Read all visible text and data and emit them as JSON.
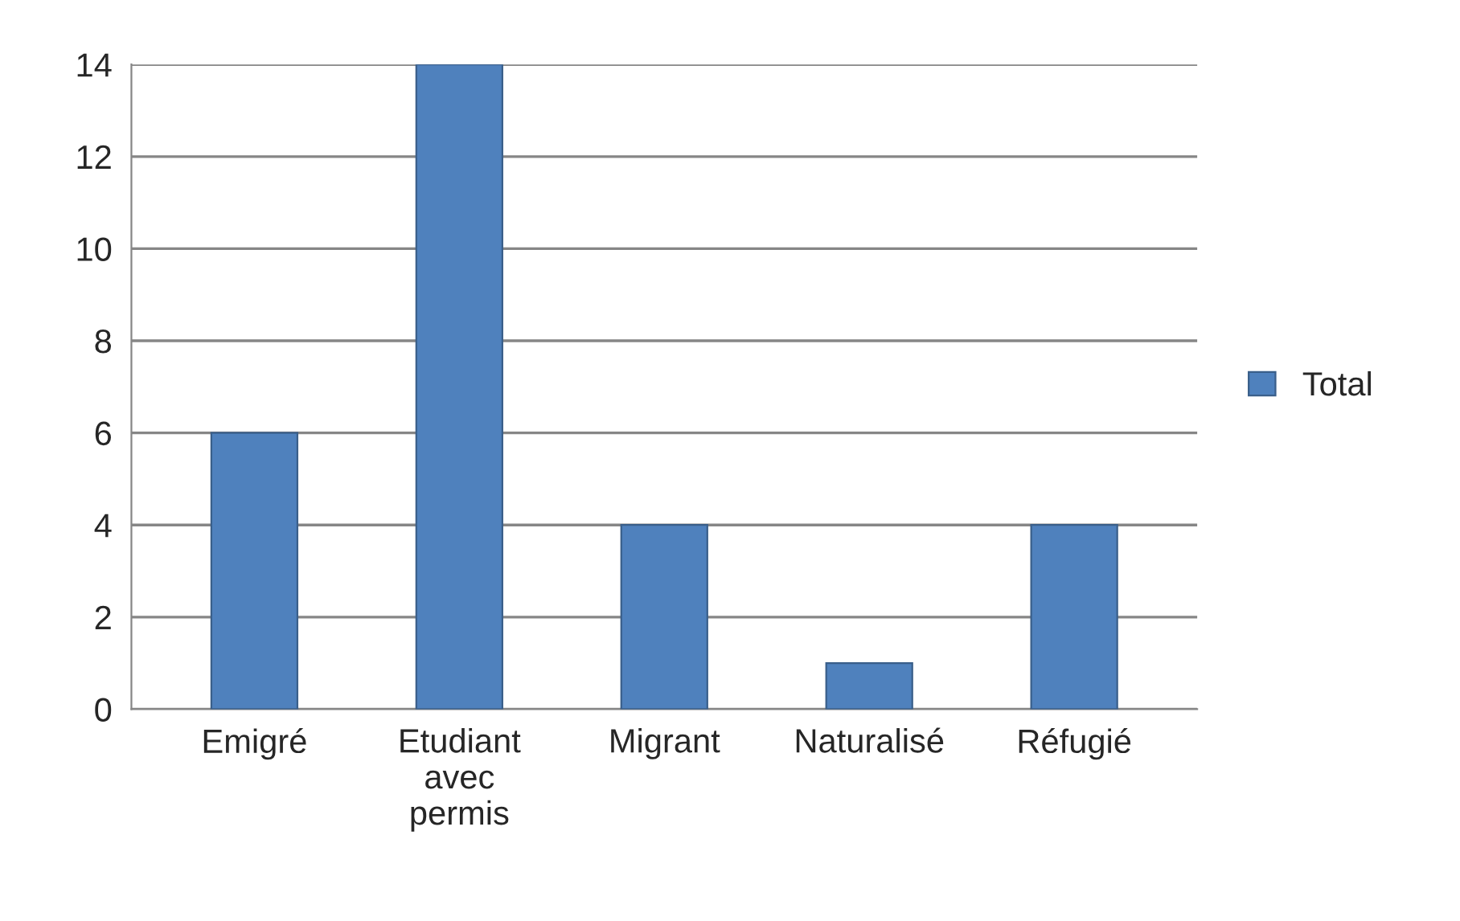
{
  "chart_data": {
    "type": "bar",
    "categories": [
      "Emigré",
      "Etudiant\navec\npermis",
      "Migrant",
      "Naturalisé",
      "Réfugié"
    ],
    "series": [
      {
        "name": "Total",
        "color": "#4f81bd",
        "values": [
          6,
          14,
          4,
          1,
          4
        ]
      }
    ],
    "ylim": [
      0,
      14
    ],
    "yticks": [
      0,
      2,
      4,
      6,
      8,
      10,
      12,
      14
    ],
    "grid": "y",
    "legend": "right"
  }
}
